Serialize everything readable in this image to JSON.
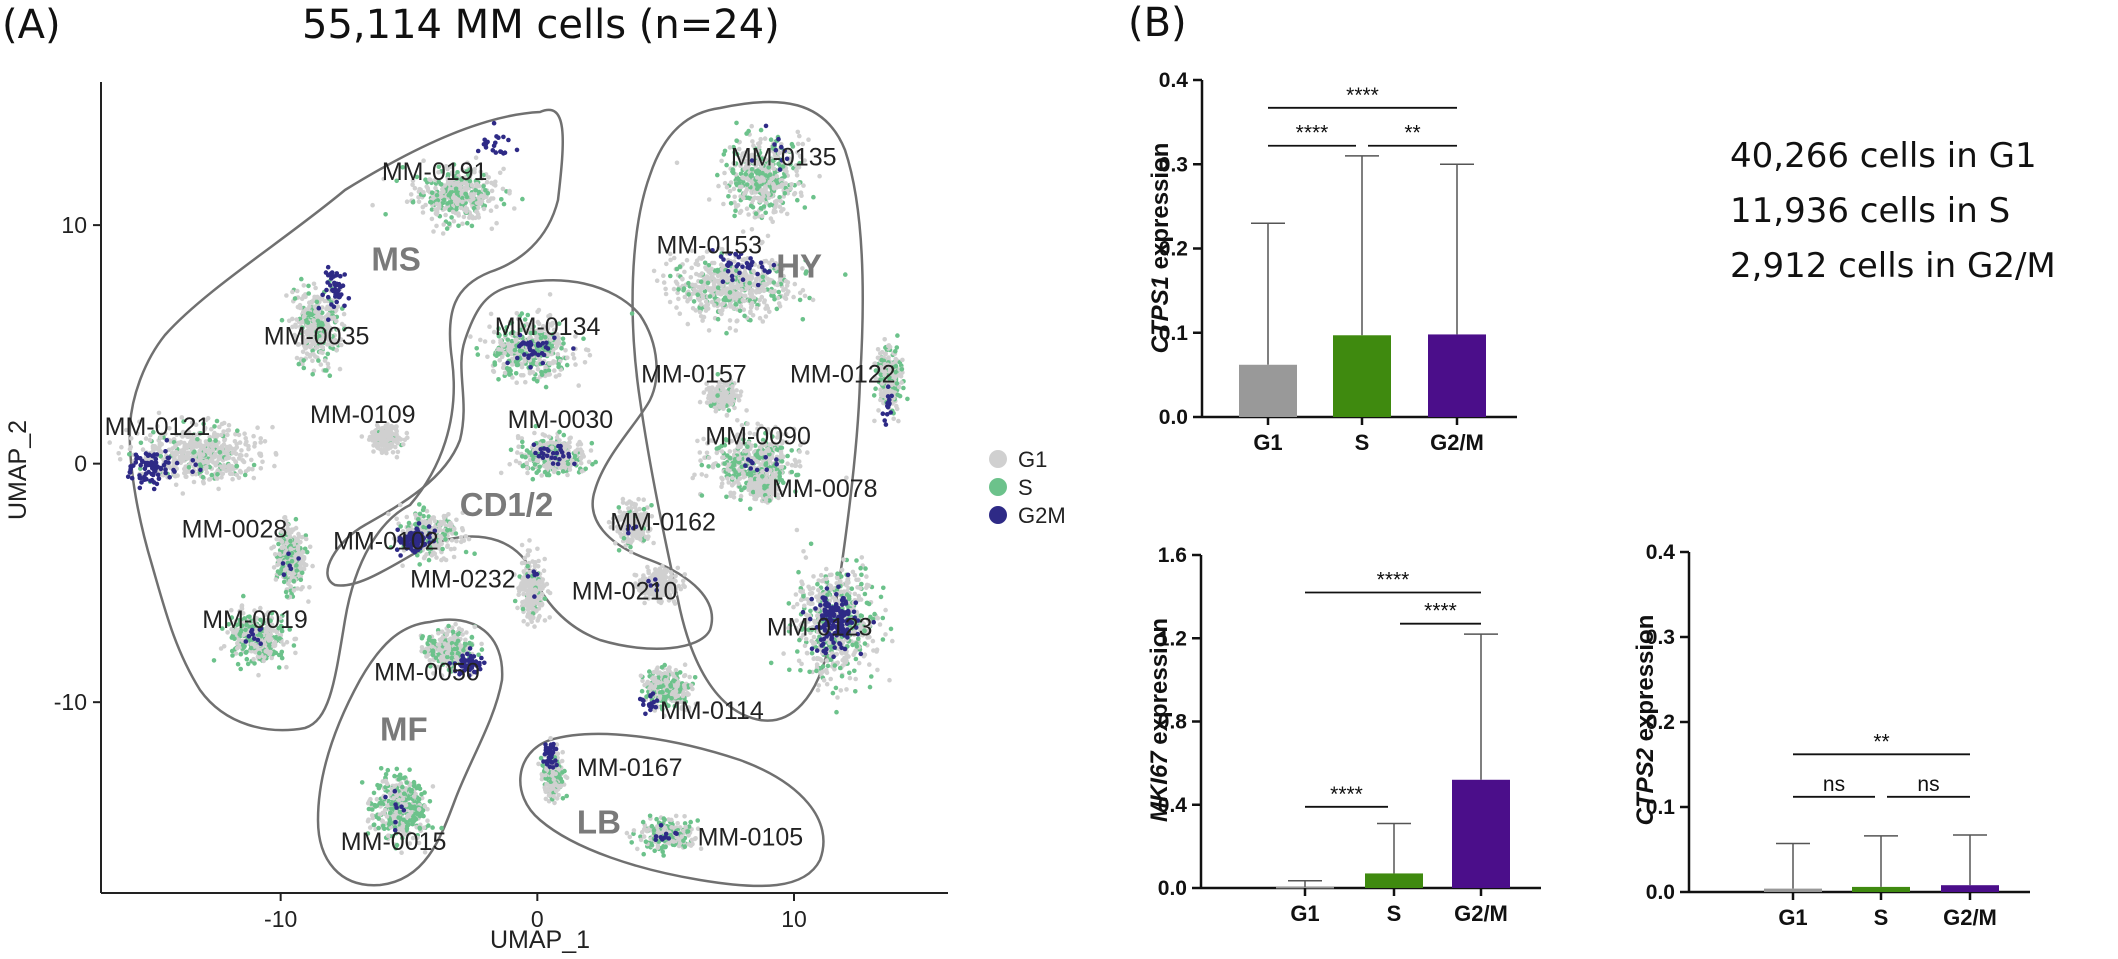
{
  "figure": {
    "panel_a_letter": "(A)",
    "panel_b_letter": "(B)",
    "panel_a_title": "55,114 MM cells (n=24)",
    "cell_counts": [
      "40,266 cells  in G1",
      "11,936 cells  in S",
      "2,912 cells  in G2/M"
    ]
  },
  "colors": {
    "G1": "#d0d0d0",
    "S": "#6cc28b",
    "G2M": "#2e2a86",
    "bar_G1": "#999999",
    "bar_S": "#3f8a0f",
    "bar_G2M": "#4b0e8a",
    "group_outline": "#707070"
  },
  "chart_data": [
    {
      "type": "scatter",
      "xlabel": "UMAP_1",
      "ylabel": "UMAP_2",
      "xlim": [
        -17,
        16
      ],
      "ylim": [
        -18,
        16
      ],
      "xticks": [
        -10,
        0,
        10
      ],
      "yticks": [
        10,
        0,
        -10
      ],
      "legend": {
        "position": "right",
        "entries": [
          "G1",
          "S",
          "G2M"
        ]
      },
      "groups": [
        {
          "name": "MS",
          "label_at": [
            -5.5,
            8.1
          ]
        },
        {
          "name": "HY",
          "label_at": [
            10.2,
            7.8
          ]
        },
        {
          "name": "CD1/2",
          "label_at": [
            -1.2,
            -2.2
          ]
        },
        {
          "name": "MF",
          "label_at": [
            -5.2,
            -11.6
          ]
        },
        {
          "name": "LB",
          "label_at": [
            2.4,
            -15.5
          ]
        }
      ],
      "clusters": [
        {
          "sample": "MM-0191",
          "x": -3.2,
          "y": 11.3,
          "sx": 1.6,
          "sy": 1.1,
          "s": 0.35,
          "g2m": 0.05,
          "g2m_pos": [
            -1.8,
            13.3
          ],
          "label_at": [
            -4.0,
            11.9
          ]
        },
        {
          "sample": "MM-0035",
          "x": -8.6,
          "y": 5.7,
          "sx": 0.9,
          "sy": 1.6,
          "s": 0.3,
          "g2m": 0.12,
          "g2m_pos": [
            -7.8,
            7.3
          ],
          "label_at": [
            -8.6,
            5.0
          ]
        },
        {
          "sample": "MM-0109",
          "x": -5.9,
          "y": 1.1,
          "sx": 0.5,
          "sy": 0.5,
          "s": 0.05,
          "g2m": 0.0,
          "g2m_pos": [
            -5.9,
            1.1
          ],
          "label_at": [
            -6.8,
            1.7
          ]
        },
        {
          "sample": "MM-0121",
          "x": -13.2,
          "y": 0.4,
          "sx": 2.3,
          "sy": 1.1,
          "s": 0.15,
          "g2m": 0.15,
          "g2m_pos": [
            -15.0,
            -0.2
          ],
          "label_at": [
            -14.8,
            1.2
          ]
        },
        {
          "sample": "MM-0028",
          "x": -9.6,
          "y": -4.0,
          "sx": 0.6,
          "sy": 1.4,
          "s": 0.35,
          "g2m": 0.02,
          "g2m_pos": [
            -9.6,
            -4.0
          ],
          "label_at": [
            -11.8,
            -3.1
          ]
        },
        {
          "sample": "MM-0019",
          "x": -10.9,
          "y": -7.3,
          "sx": 1.1,
          "sy": 1.1,
          "s": 0.45,
          "g2m": 0.03,
          "g2m_pos": [
            -10.9,
            -7.3
          ],
          "label_at": [
            -11.0,
            -6.9
          ]
        },
        {
          "sample": "MM-0102",
          "x": -4.2,
          "y": -3.0,
          "sx": 1.1,
          "sy": 0.9,
          "s": 0.25,
          "g2m": 0.3,
          "g2m_pos": [
            -4.8,
            -3.2
          ],
          "label_at": [
            -5.9,
            -3.6
          ]
        },
        {
          "sample": "MM-0050",
          "x": -3.4,
          "y": -7.8,
          "sx": 1.0,
          "sy": 0.8,
          "s": 0.35,
          "g2m": 0.15,
          "g2m_pos": [
            -2.7,
            -8.4
          ],
          "label_at": [
            -4.3,
            -9.1
          ]
        },
        {
          "sample": "MM-0015",
          "x": -5.4,
          "y": -14.4,
          "sx": 1.1,
          "sy": 1.3,
          "s": 0.55,
          "g2m": 0.02,
          "g2m_pos": [
            -5.4,
            -14.4
          ],
          "label_at": [
            -5.6,
            -16.2
          ]
        },
        {
          "sample": "MM-0134",
          "x": -0.2,
          "y": 4.8,
          "sx": 1.6,
          "sy": 1.2,
          "s": 0.45,
          "g2m": 0.08,
          "g2m_pos": [
            -0.2,
            4.8
          ],
          "label_at": [
            0.4,
            5.4
          ]
        },
        {
          "sample": "MM-0030",
          "x": 0.6,
          "y": 0.3,
          "sx": 1.3,
          "sy": 0.8,
          "s": 0.3,
          "g2m": 0.08,
          "g2m_pos": [
            0.6,
            0.3
          ],
          "label_at": [
            0.9,
            1.5
          ]
        },
        {
          "sample": "MM-0232",
          "x": -0.2,
          "y": -5.2,
          "sx": 0.5,
          "sy": 1.2,
          "s": 0.1,
          "g2m": 0.02,
          "g2m_pos": [
            -0.2,
            -5.2
          ],
          "label_at": [
            -2.9,
            -5.2
          ]
        },
        {
          "sample": "MM-0162",
          "x": 3.7,
          "y": -2.6,
          "sx": 0.6,
          "sy": 0.8,
          "s": 0.05,
          "g2m": 0.02,
          "g2m_pos": [
            3.7,
            -2.6
          ],
          "label_at": [
            4.9,
            -2.8
          ]
        },
        {
          "sample": "MM-0210",
          "x": 4.7,
          "y": -5.1,
          "sx": 0.8,
          "sy": 0.6,
          "s": 0.05,
          "g2m": 0.02,
          "g2m_pos": [
            4.7,
            -5.1
          ],
          "label_at": [
            3.4,
            -5.7
          ]
        },
        {
          "sample": "MM-0135",
          "x": 8.8,
          "y": 12.0,
          "sx": 1.4,
          "sy": 1.6,
          "s": 0.35,
          "g2m": 0.02,
          "g2m_pos": [
            9.3,
            13.5
          ],
          "label_at": [
            9.6,
            12.5
          ]
        },
        {
          "sample": "MM-0153",
          "x": 7.6,
          "y": 7.4,
          "sx": 2.3,
          "sy": 1.3,
          "s": 0.2,
          "g2m": 0.06,
          "g2m_pos": [
            7.9,
            8.3
          ],
          "label_at": [
            6.7,
            8.8
          ]
        },
        {
          "sample": "MM-0157",
          "x": 7.2,
          "y": 2.8,
          "sx": 0.6,
          "sy": 0.5,
          "s": 0.1,
          "g2m": 0.0,
          "g2m_pos": [
            7.2,
            2.8
          ],
          "label_at": [
            6.1,
            3.4
          ]
        },
        {
          "sample": "MM-0122",
          "x": 13.7,
          "y": 3.6,
          "sx": 0.5,
          "sy": 1.3,
          "s": 0.3,
          "g2m": 0.05,
          "g2m_pos": [
            13.7,
            2.4
          ],
          "label_at": [
            11.9,
            3.4
          ]
        },
        {
          "sample": "MM-0090",
          "x": 8.4,
          "y": 0.0,
          "sx": 1.7,
          "sy": 1.3,
          "s": 0.35,
          "g2m": 0.02,
          "g2m_pos": [
            8.4,
            0.0
          ],
          "label_at": [
            8.6,
            0.8
          ]
        },
        {
          "sample": "MM-0078",
          "x": 8.8,
          "y": -1.0,
          "sx": 0.5,
          "sy": 0.5,
          "s": 0.1,
          "g2m": 0.0,
          "g2m_pos": [
            8.8,
            -1.0
          ],
          "label_at": [
            11.2,
            -1.4
          ]
        },
        {
          "sample": "MM-0123",
          "x": 11.6,
          "y": -6.7,
          "sx": 1.5,
          "sy": 2.2,
          "s": 0.35,
          "g2m": 0.25,
          "g2m_pos": [
            11.6,
            -6.7
          ],
          "label_at": [
            11.0,
            -7.2
          ]
        },
        {
          "sample": "MM-0114",
          "x": 5.1,
          "y": -9.4,
          "sx": 0.9,
          "sy": 0.8,
          "s": 0.35,
          "g2m": 0.06,
          "g2m_pos": [
            4.4,
            -10.0
          ],
          "label_at": [
            6.8,
            -10.7
          ]
        },
        {
          "sample": "MM-0167",
          "x": 0.6,
          "y": -13.0,
          "sx": 0.4,
          "sy": 0.9,
          "s": 0.35,
          "g2m": 0.15,
          "g2m_pos": [
            0.5,
            -12.2
          ],
          "label_at": [
            3.6,
            -13.1
          ]
        },
        {
          "sample": "MM-0105",
          "x": 5.0,
          "y": -15.6,
          "sx": 1.0,
          "sy": 0.6,
          "s": 0.4,
          "g2m": 0.04,
          "g2m_pos": [
            5.0,
            -15.6
          ],
          "label_at": [
            8.3,
            -16.0
          ]
        }
      ]
    },
    {
      "type": "bar",
      "ylabel": "CTPS1 expression",
      "ylabel_italic": "CTPS1",
      "ylabel_rest": " expression",
      "categories": [
        "G1",
        "S",
        "G2/M"
      ],
      "values": [
        0.062,
        0.097,
        0.098
      ],
      "error_upper": [
        0.23,
        0.31,
        0.3
      ],
      "ylim": [
        0,
        0.4
      ],
      "yticks": [
        0.0,
        0.1,
        0.2,
        0.3,
        0.4
      ],
      "tick_labels": [
        "0.0",
        "0.1",
        "0.2",
        "0.3",
        "0.4"
      ],
      "significance": [
        {
          "from": 0,
          "to": 2,
          "label": "****",
          "level": 0.367
        },
        {
          "from": 0,
          "to": 1,
          "label": "****",
          "level": 0.322
        },
        {
          "from": 1,
          "to": 2,
          "label": "**",
          "level": 0.322
        }
      ]
    },
    {
      "type": "bar",
      "ylabel": "MKI67 expression",
      "ylabel_italic": "MKI67",
      "ylabel_rest": " expression",
      "categories": [
        "G1",
        "S",
        "G2/M"
      ],
      "values": [
        0.005,
        0.07,
        0.52
      ],
      "error_upper": [
        0.035,
        0.31,
        1.22
      ],
      "ylim": [
        0,
        1.6
      ],
      "yticks": [
        0.0,
        0.4,
        0.8,
        1.2,
        1.6
      ],
      "tick_labels": [
        "0.0",
        "0.4",
        "0.8",
        "1.2",
        "1.6"
      ],
      "significance": [
        {
          "from": 0,
          "to": 2,
          "label": "****",
          "level": 1.42
        },
        {
          "from": 1,
          "to": 2,
          "label": "****",
          "level": 1.27
        },
        {
          "from": 0,
          "to": 1,
          "label": "****",
          "level": 0.39
        }
      ]
    },
    {
      "type": "bar",
      "ylabel": "CTPS2 expression",
      "ylabel_italic": "CTPS2",
      "ylabel_rest": " expression",
      "categories": [
        "G1",
        "S",
        "G2/M"
      ],
      "values": [
        0.004,
        0.006,
        0.008
      ],
      "error_upper": [
        0.057,
        0.066,
        0.067
      ],
      "ylim": [
        0,
        0.4
      ],
      "yticks": [
        0.0,
        0.1,
        0.2,
        0.3,
        0.4
      ],
      "tick_labels": [
        "0.0",
        "0.1",
        "0.2",
        "0.3",
        "0.4"
      ],
      "significance": [
        {
          "from": 0,
          "to": 2,
          "label": "**",
          "level": 0.162
        },
        {
          "from": 0,
          "to": 1,
          "label": "ns",
          "level": 0.112
        },
        {
          "from": 1,
          "to": 2,
          "label": "ns",
          "level": 0.112
        }
      ]
    }
  ]
}
